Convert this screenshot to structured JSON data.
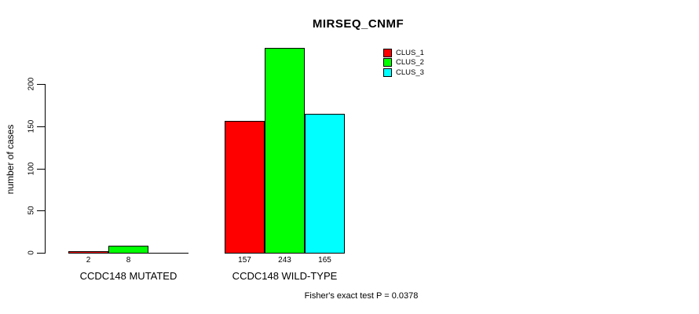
{
  "chart_data": {
    "type": "bar",
    "title": "MIRSEQ_CNMF",
    "xlabel": "",
    "ylabel": "number of cases",
    "yticks": [
      0,
      50,
      100,
      150,
      200
    ],
    "ylim": [
      0,
      250
    ],
    "grid": false,
    "legend_position": "top-right-inside",
    "categories": [
      "CCDC148 MUTATED",
      "CCDC148 WILD-TYPE"
    ],
    "series": [
      {
        "name": "CLUS_1",
        "color": "#ff0000",
        "values": [
          2,
          157
        ]
      },
      {
        "name": "CLUS_2",
        "color": "#00ff00",
        "values": [
          8,
          243
        ]
      },
      {
        "name": "CLUS_3",
        "color": "#00ffff",
        "values": [
          0,
          165
        ]
      }
    ],
    "bar_value_labels_shown": [
      "2",
      "8",
      "157",
      "243",
      "165"
    ],
    "annotation": "Fisher's exact test P = 0.0378"
  },
  "colors": {
    "clus_1": "#ff0000",
    "clus_2": "#00ff00",
    "clus_3": "#00ffff",
    "axis": "#000000",
    "background": "#ffffff"
  }
}
